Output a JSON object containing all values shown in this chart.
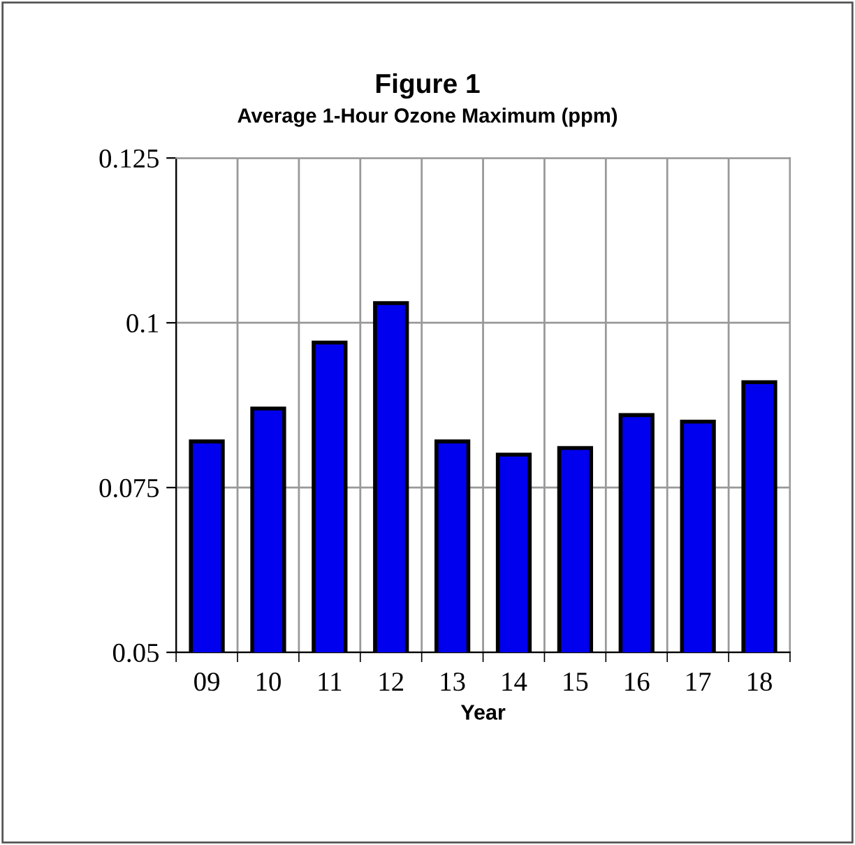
{
  "chart_data": {
    "type": "bar",
    "title": "Figure 1",
    "subtitle": "Average 1-Hour Ozone Maximum (ppm)",
    "xlabel": "Year",
    "categories": [
      "09",
      "10",
      "11",
      "12",
      "13",
      "14",
      "15",
      "16",
      "17",
      "18"
    ],
    "values": [
      0.082,
      0.087,
      0.097,
      0.103,
      0.082,
      0.08,
      0.081,
      0.086,
      0.085,
      0.091
    ],
    "color": "#0000ee",
    "ylim": [
      0.05,
      0.125
    ],
    "yticks": [
      0.05,
      0.075,
      0.1,
      0.125
    ],
    "grid": true
  }
}
